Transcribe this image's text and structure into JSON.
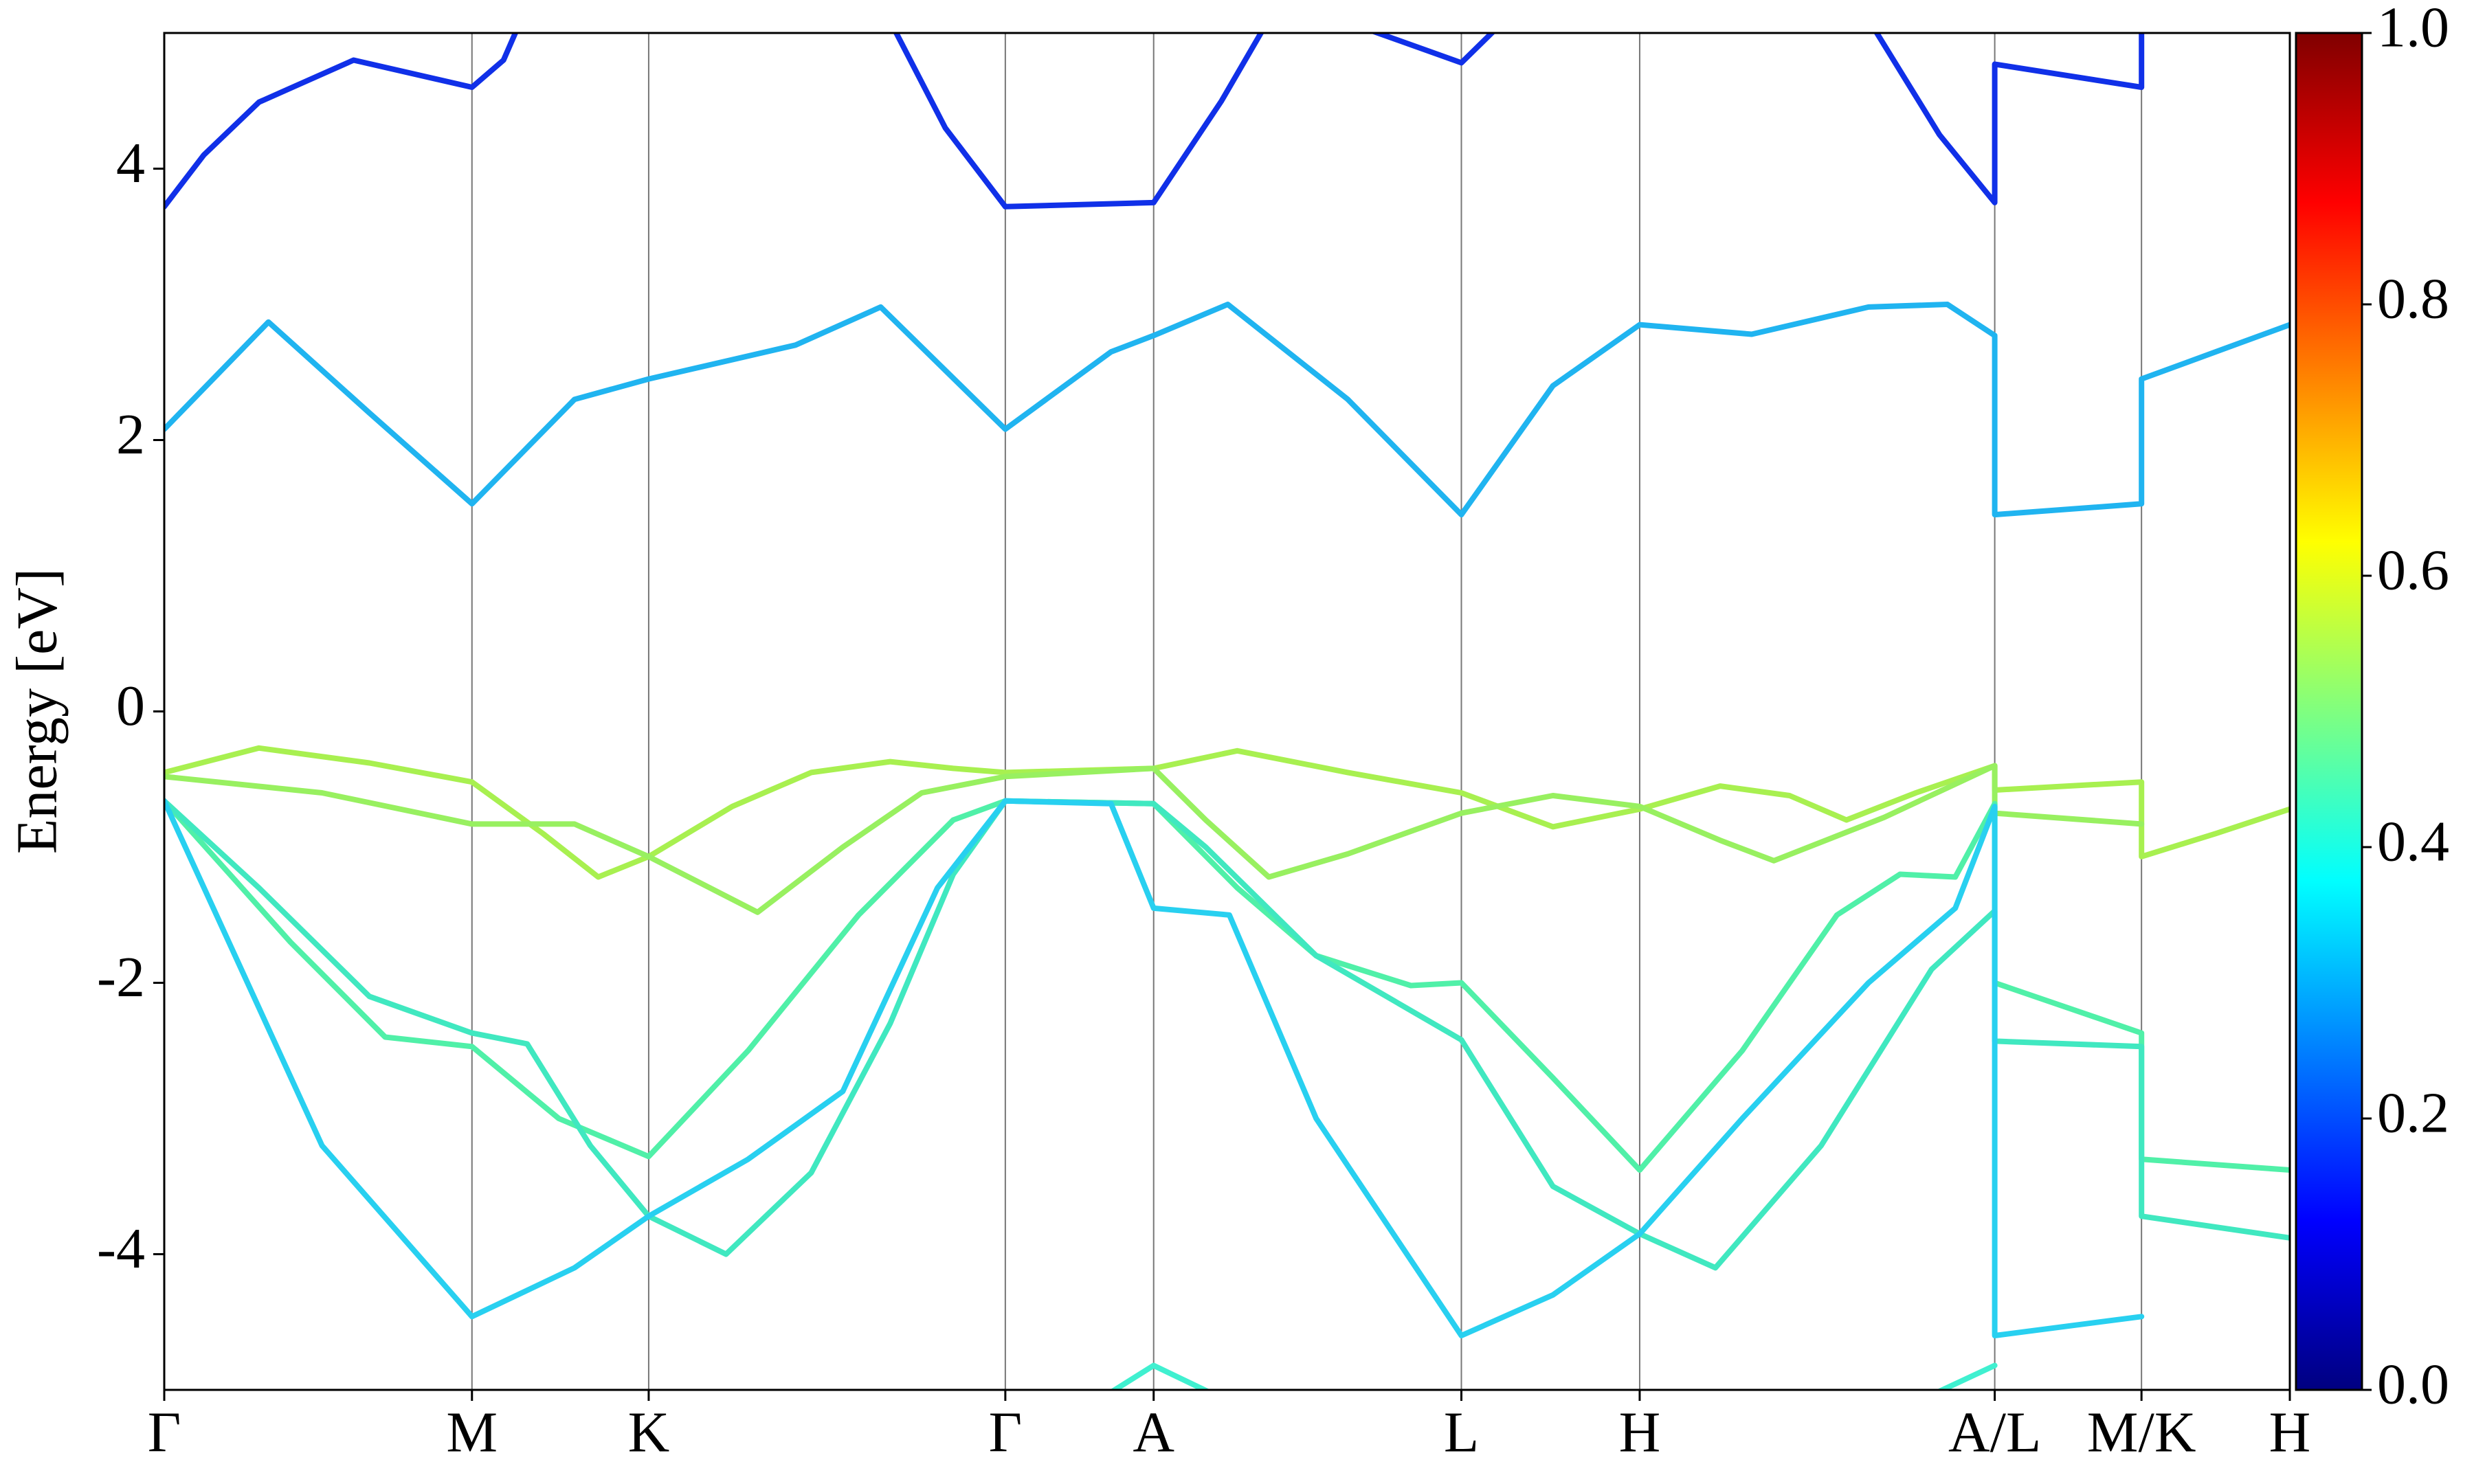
{
  "chart_data": {
    "type": "line",
    "y_label": "Energy [eV]",
    "xlim": [
      0,
      13.47
    ],
    "ylim": [
      -5,
      5
    ],
    "xticks": [
      {
        "value": 0,
        "label": "Γ"
      },
      {
        "value": 1.95,
        "label": "M"
      },
      {
        "value": 3.07,
        "label": "K"
      },
      {
        "value": 5.33,
        "label": "Γ"
      },
      {
        "value": 6.27,
        "label": "A"
      },
      {
        "value": 8.22,
        "label": "L"
      },
      {
        "value": 9.35,
        "label": "H"
      },
      {
        "value": 11.6,
        "label": "A/L"
      },
      {
        "value": 12.53,
        "label": "M/K"
      },
      {
        "value": 13.47,
        "label": "H"
      }
    ],
    "yticks": [
      -4,
      -2,
      0,
      2,
      4
    ],
    "grid": "x",
    "colorbar": {
      "cmap": "jet",
      "lim": [
        0,
        1
      ],
      "ticks": [
        {
          "value": 0,
          "label": "0.0"
        },
        {
          "value": 0.2,
          "label": "0.2"
        },
        {
          "value": 0.4,
          "label": "0.4"
        },
        {
          "value": 0.6,
          "label": "0.6"
        },
        {
          "value": 0.8,
          "label": "0.8"
        },
        {
          "value": 1,
          "label": "1.0"
        }
      ]
    },
    "series": [
      {
        "color": "#1030e8",
        "x": [
          0,
          0.25,
          0.6,
          1.2,
          1.95,
          2.15,
          2.3,
          3,
          4.55,
          4.95,
          5.33,
          6.27,
          6.7,
          7.05,
          7.3,
          7.45,
          8.22,
          8.5,
          9,
          10.8,
          11.25,
          11.6,
          11.6,
          12.53,
          12.53
        ],
        "values": [
          3.72,
          4.1,
          4.49,
          4.8,
          4.6,
          4.8,
          5.2,
          null,
          5.2,
          4.3,
          3.72,
          3.75,
          4.5,
          5.2,
          null,
          5.1,
          4.78,
          5.1,
          null,
          5.1,
          4.25,
          3.75,
          4.77,
          4.6,
          5.2
        ]
      },
      {
        "color": "#20b4f0",
        "x": [
          0,
          0.66,
          1.3,
          1.95,
          2.6,
          3.07,
          4.0,
          4.54,
          5.33,
          6.0,
          6.27,
          6.74,
          7.5,
          8.22,
          8.8,
          9.35,
          10.06,
          10.8,
          11.3,
          11.6,
          11.6,
          12.53,
          12.53,
          13.47
        ],
        "values": [
          2.08,
          2.87,
          2.2,
          1.53,
          2.3,
          2.45,
          2.7,
          2.98,
          2.08,
          2.65,
          2.77,
          3.0,
          2.3,
          1.45,
          2.4,
          2.85,
          2.78,
          2.98,
          3.0,
          2.77,
          1.45,
          1.53,
          2.45,
          2.85
        ]
      },
      {
        "color": "#a8f050",
        "x": [
          0,
          0.6,
          1.3,
          1.95,
          2.4,
          2.75,
          3.07,
          3.6,
          4.1,
          4.6,
          5.0,
          5.33,
          6.27,
          6.8,
          7.5,
          8.22,
          8.8,
          9.35,
          9.86,
          10.3,
          10.66,
          11.1,
          11.6,
          11.6,
          12.53,
          12.53,
          13.0,
          13.47
        ],
        "values": [
          -0.45,
          -0.27,
          -0.38,
          -0.52,
          -0.9,
          -1.22,
          -1.07,
          -0.7,
          -0.45,
          -0.37,
          -0.42,
          -0.45,
          -0.42,
          -0.29,
          -0.45,
          -0.6,
          -0.85,
          -0.72,
          -0.55,
          -0.62,
          -0.8,
          -0.6,
          -0.4,
          -0.58,
          -0.52,
          -1.07,
          -0.9,
          -0.72
        ]
      },
      {
        "color": "#98f060",
        "x": [
          0,
          1.0,
          1.95,
          2.6,
          3.07,
          3.76,
          4.3,
          4.8,
          5.33,
          6.27,
          6.6,
          7.0,
          7.5,
          8.22,
          8.8,
          9.35,
          9.86,
          10.2,
          10.9,
          11.6,
          11.6,
          12.53
        ],
        "values": [
          -0.48,
          -0.6,
          -0.83,
          -0.83,
          -1.07,
          -1.48,
          -1.0,
          -0.6,
          -0.48,
          -0.42,
          -0.8,
          -1.22,
          -1.05,
          -0.75,
          -0.62,
          -0.7,
          -0.95,
          -1.1,
          -0.78,
          -0.4,
          -0.75,
          -0.83
        ]
      },
      {
        "color": "#50f0a8",
        "x": [
          0,
          0.8,
          1.4,
          1.95,
          2.5,
          3.07,
          3.7,
          4.4,
          5.0,
          5.33,
          6.27,
          6.8,
          7.3,
          7.9,
          8.22,
          8.8,
          9.35,
          10.0,
          10.6,
          11.0,
          11.35,
          11.6,
          11.6,
          12.53,
          12.53,
          13.47
        ],
        "values": [
          -0.66,
          -1.7,
          -2.4,
          -2.47,
          -3.0,
          -3.28,
          -2.5,
          -1.5,
          -0.8,
          -0.66,
          -0.68,
          -1.3,
          -1.8,
          -2.02,
          -2.0,
          -2.7,
          -3.38,
          -2.5,
          -1.5,
          -1.2,
          -1.22,
          -0.68,
          -2.0,
          -2.37,
          -3.3,
          -3.38
        ]
      },
      {
        "color": "#40e8c0",
        "x": [
          0,
          0.6,
          1.3,
          1.95,
          2.3,
          2.7,
          3.07,
          3.56,
          4.1,
          4.6,
          5.0,
          5.33,
          6.27,
          6.6,
          7.3,
          8.22,
          8.8,
          9.35,
          9.83,
          10.5,
          11.2,
          11.6,
          11.6,
          12.53,
          12.53,
          13.47
        ],
        "values": [
          -0.66,
          -1.3,
          -2.1,
          -2.37,
          -2.45,
          -3.2,
          -3.72,
          -4.0,
          -3.4,
          -2.3,
          -1.2,
          -0.66,
          -0.68,
          -1.0,
          -1.8,
          -2.42,
          -3.5,
          -3.85,
          -4.1,
          -3.2,
          -1.9,
          -1.47,
          -2.43,
          -2.47,
          -3.72,
          -3.88
        ]
      },
      {
        "color": "#28d0f0",
        "x": [
          0,
          1.0,
          1.95,
          2.6,
          3.07,
          3.7,
          4.3,
          4.9,
          5.33,
          6.0,
          6.27,
          6.75,
          7.3,
          8.22,
          8.8,
          9.35,
          10.0,
          10.8,
          11.35,
          11.6,
          11.6,
          12.53
        ],
        "values": [
          -0.66,
          -3.2,
          -4.46,
          -4.1,
          -3.72,
          -3.3,
          -2.8,
          -1.3,
          -0.66,
          -0.68,
          -1.45,
          -1.5,
          -3.0,
          -4.6,
          -4.3,
          -3.85,
          -3.0,
          -2.0,
          -1.45,
          -0.7,
          -4.6,
          -4.46
        ]
      },
      {
        "color": "#40f0d0",
        "x": [
          5.75,
          6.27,
          6.95,
          7.5,
          10.9,
          11.6
        ],
        "values": [
          -5.2,
          -4.82,
          -5.2,
          null,
          -5.2,
          -4.82
        ]
      }
    ]
  }
}
